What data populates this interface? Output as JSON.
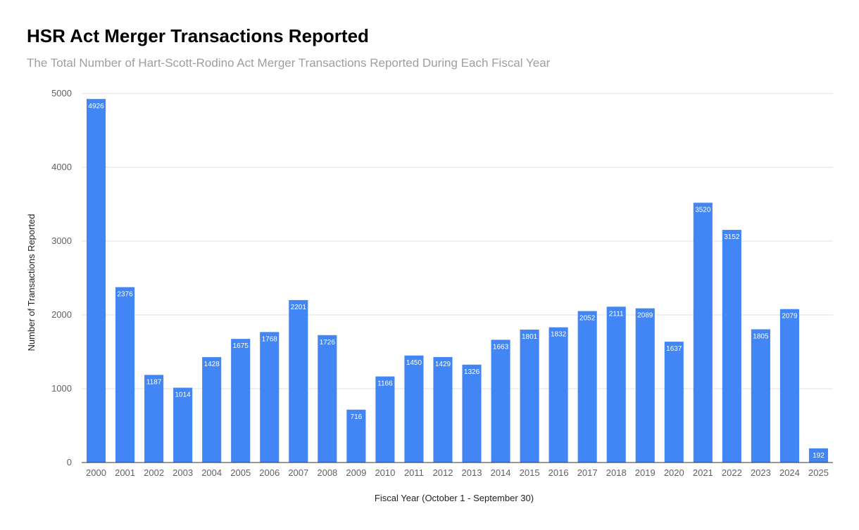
{
  "chart_data": {
    "type": "bar",
    "title": "HSR Act Merger Transactions Reported",
    "subtitle": "The Total Number of Hart-Scott-Rodino Act Merger Transactions Reported During Each Fiscal Year",
    "xlabel": "Fiscal Year (October 1 - September 30)",
    "ylabel": "Number of Transactions Reported",
    "ylim": [
      0,
      5000
    ],
    "yticks": [
      0,
      1000,
      2000,
      3000,
      4000,
      5000
    ],
    "grid": true,
    "data_labels": true,
    "bar_color": "#4285f4",
    "categories": [
      "2000",
      "2001",
      "2002",
      "2003",
      "2004",
      "2005",
      "2006",
      "2007",
      "2008",
      "2009",
      "2010",
      "2011",
      "2012",
      "2013",
      "2014",
      "2015",
      "2016",
      "2017",
      "2018",
      "2019",
      "2020",
      "2021",
      "2022",
      "2023",
      "2024",
      "2025"
    ],
    "values": [
      4926,
      2376,
      1187,
      1014,
      1428,
      1675,
      1768,
      2201,
      1726,
      716,
      1166,
      1450,
      1429,
      1326,
      1663,
      1801,
      1832,
      2052,
      2111,
      2089,
      1637,
      3520,
      3152,
      1805,
      2079,
      192
    ]
  }
}
